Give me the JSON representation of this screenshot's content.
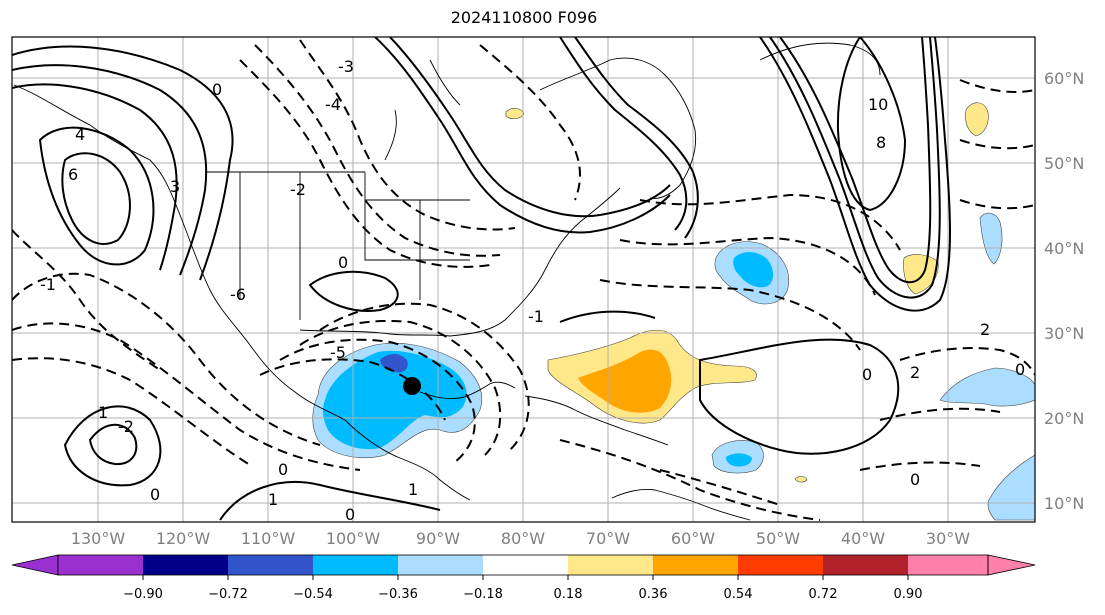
{
  "title": "2024110800 F096",
  "map": {
    "lon_labels": [
      "130°W",
      "120°W",
      "110°W",
      "100°W",
      "90°W",
      "80°W",
      "70°W",
      "60°W",
      "50°W",
      "40°W",
      "30°W"
    ],
    "lat_labels": [
      "60°N",
      "50°N",
      "40°N",
      "30°N",
      "20°N",
      "10°N"
    ],
    "contour_labels": [
      "0",
      "-3",
      "-4",
      "-2",
      "-6",
      "-1",
      "-5",
      "4",
      "6",
      "3",
      "10",
      "8",
      "2",
      "1",
      "-1",
      "-2"
    ],
    "storm_marker": "black-dot",
    "gridlines": true
  },
  "colorbar": {
    "ticks": [
      "−0.90",
      "−0.72",
      "−0.54",
      "−0.36",
      "−0.18",
      "0.18",
      "0.36",
      "0.54",
      "0.72",
      "0.90"
    ],
    "colors": [
      "#9b30d0",
      "#000088",
      "#3355cc",
      "#00bbff",
      "#aaddff",
      "#ffffff",
      "#ffe88a",
      "#ffa500",
      "#ff3c00",
      "#b2222a",
      "#ff80aa"
    ]
  }
}
